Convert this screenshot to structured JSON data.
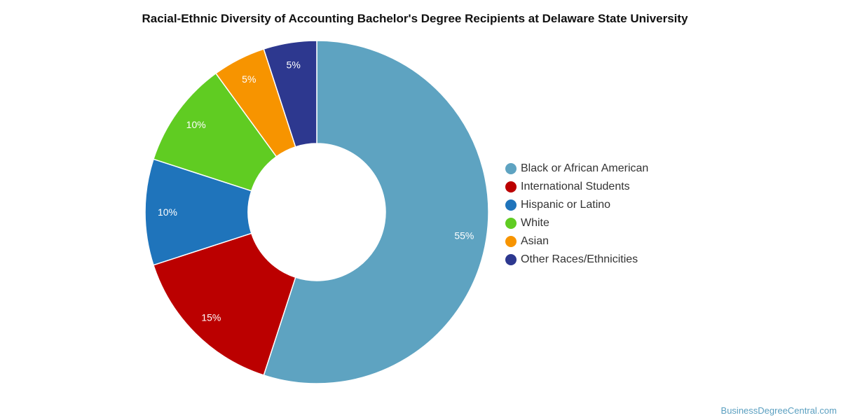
{
  "chart_data": {
    "type": "pie",
    "title": "Racial-Ethnic Diversity of Accounting Bachelor's Degree Recipients at Delaware State University",
    "legend_position": "right",
    "slices": [
      {
        "name": "Black or African American",
        "value": 55,
        "label": "55%",
        "color": "#5ea3c1"
      },
      {
        "name": "International Students",
        "value": 15,
        "label": "15%",
        "color": "#bb0000"
      },
      {
        "name": "Hispanic or Latino",
        "value": 10,
        "label": "10%",
        "color": "#1f74bb"
      },
      {
        "name": "White",
        "value": 10,
        "label": "10%",
        "color": "#60cc22"
      },
      {
        "name": "Asian",
        "value": 5,
        "label": "5%",
        "color": "#f79400"
      },
      {
        "name": "Other Races/Ethnicities",
        "value": 5,
        "label": "5%",
        "color": "#2d388f"
      }
    ]
  },
  "footer": {
    "source": "BusinessDegreeCentral.com"
  }
}
